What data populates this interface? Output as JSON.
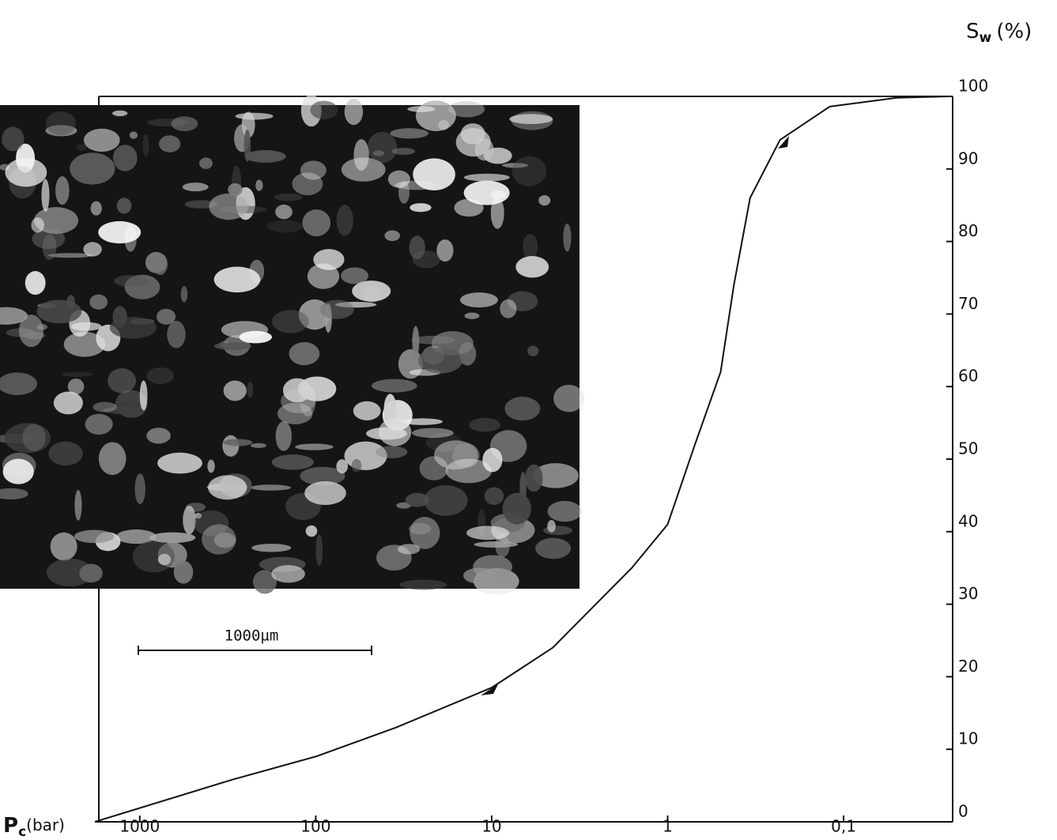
{
  "chart_data": {
    "type": "line",
    "y_label": {
      "symbol": "S",
      "subscript": "w",
      "unit": "(%)"
    },
    "x_label": {
      "symbol": "P",
      "subscript": "c",
      "unit": "(bar)"
    },
    "scale_bar_label": "1000µm",
    "x_scale": "log",
    "xlim": [
      1800,
      0.024
    ],
    "xticks": [
      1000,
      100,
      10,
      1,
      {
        "value": 0.1,
        "label": "0,1"
      }
    ],
    "ylim": [
      0,
      100
    ],
    "yticks": [
      0,
      10,
      20,
      30,
      40,
      50,
      60,
      70,
      80,
      90,
      100
    ],
    "y_axis_side": "right",
    "series": [
      {
        "color": "#111111",
        "x": [
          1800,
          300,
          100,
          35,
          10,
          4.5,
          1.6,
          1,
          0.7,
          0.5,
          0.42,
          0.34,
          0.23,
          0.12,
          0.05,
          0.025
        ],
        "values": [
          0,
          5.8,
          9,
          13,
          18.5,
          24,
          35,
          41,
          52,
          62,
          74,
          86,
          94,
          98.6,
          99.8,
          100
        ]
      }
    ]
  }
}
